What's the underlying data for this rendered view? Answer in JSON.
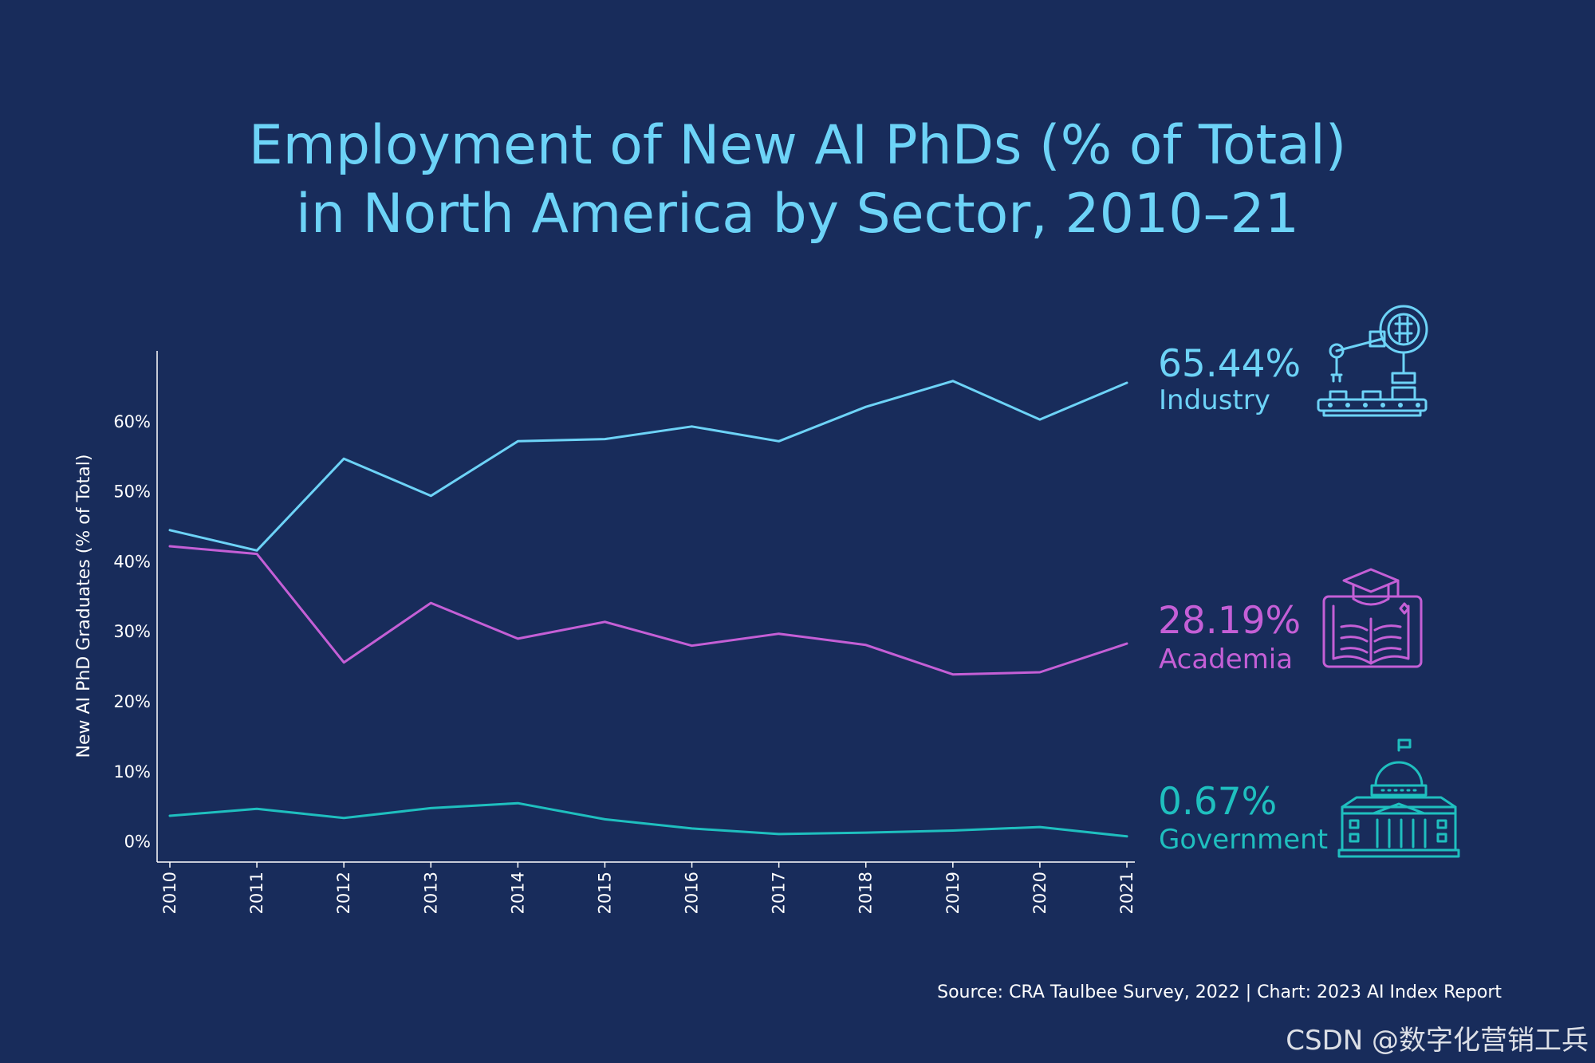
{
  "title": {
    "line1": "Employment of New AI PhDs (% of Total)",
    "line2": "in North America by Sector, 2010–21"
  },
  "chart_data": {
    "type": "line",
    "title": "Employment of New AI PhDs (% of Total) in North America by Sector, 2010–21",
    "xlabel": "",
    "ylabel": "New AI PhD Graduates (% of Total)",
    "ylim": [
      -3,
      70
    ],
    "grid": false,
    "yticks": [
      0,
      10,
      20,
      30,
      40,
      50,
      60
    ],
    "ytick_labels": [
      "0%",
      "10%",
      "20%",
      "30%",
      "40%",
      "50%",
      "60%"
    ],
    "categories": [
      "2010",
      "2011",
      "2012",
      "2013",
      "2014",
      "2015",
      "2016",
      "2017",
      "2018",
      "2019",
      "2020",
      "2021"
    ],
    "series": [
      {
        "name": "Industry",
        "color": "#6dd3f7",
        "end_label": "65.44%",
        "icon": "robot-arm-brain-icon",
        "values": [
          44.4,
          41.5,
          54.6,
          49.3,
          57.1,
          57.4,
          59.2,
          57.1,
          62.0,
          65.7,
          60.2,
          65.44
        ]
      },
      {
        "name": "Academia",
        "color": "#c45fd6",
        "end_label": "28.19%",
        "icon": "graduation-book-icon",
        "values": [
          42.1,
          41.0,
          25.5,
          34.0,
          28.9,
          31.3,
          27.9,
          29.6,
          28.0,
          23.8,
          24.1,
          28.19
        ]
      },
      {
        "name": "Government",
        "color": "#1fbfbf",
        "end_label": "0.67%",
        "icon": "government-building-icon",
        "values": [
          3.6,
          4.6,
          3.3,
          4.7,
          5.4,
          3.1,
          1.8,
          1.0,
          1.2,
          1.5,
          2.0,
          0.67
        ]
      }
    ]
  },
  "footer": {
    "source": "Source: CRA Taulbee Survey, 2022 | Chart: 2023 AI Index Report",
    "watermark": "CSDN @数字化营销工兵"
  }
}
